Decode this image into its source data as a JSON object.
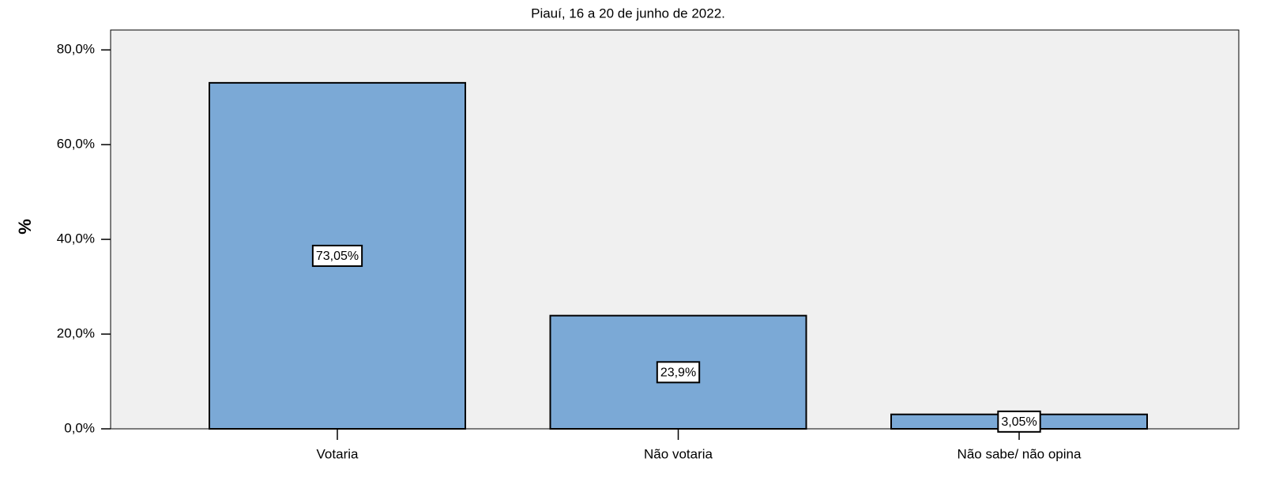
{
  "chart_data": {
    "type": "bar",
    "title": "Piauí, 16 a 20 de junho de 2022.",
    "y_label": "%",
    "categories": [
      "Votaria",
      "Não votaria",
      "Não sabe/ não opina"
    ],
    "values": [
      73.05,
      23.9,
      3.05
    ],
    "value_labels": [
      "73,05%",
      "23,9%",
      "3,05%"
    ],
    "color": "#7ba9d6",
    "ylim": [
      0,
      84.2
    ],
    "yticks": [
      {
        "value": 0,
        "label": "0,0%"
      },
      {
        "value": 20,
        "label": "20,0%"
      },
      {
        "value": 40,
        "label": "40,0%"
      },
      {
        "value": 60,
        "label": "60,0%"
      },
      {
        "value": 80,
        "label": "80,0%"
      }
    ]
  }
}
